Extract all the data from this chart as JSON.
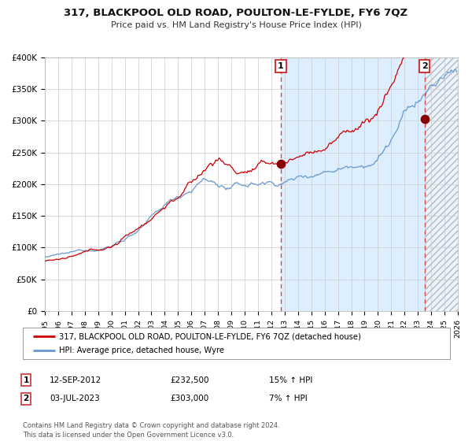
{
  "title": "317, BLACKPOOL OLD ROAD, POULTON-LE-FYLDE, FY6 7QZ",
  "subtitle": "Price paid vs. HM Land Registry's House Price Index (HPI)",
  "legend_line1": "317, BLACKPOOL OLD ROAD, POULTON-LE-FYLDE, FY6 7QZ (detached house)",
  "legend_line2": "HPI: Average price, detached house, Wyre",
  "annotation1_date": "12-SEP-2012",
  "annotation1_price": "£232,500",
  "annotation1_hpi": "15% ↑ HPI",
  "annotation2_date": "03-JUL-2023",
  "annotation2_price": "£303,000",
  "annotation2_hpi": "7% ↑ HPI",
  "footer": "Contains HM Land Registry data © Crown copyright and database right 2024.\nThis data is licensed under the Open Government Licence v3.0.",
  "xmin": 1995,
  "xmax": 2026,
  "ymin": 0,
  "ymax": 400000,
  "yticks": [
    0,
    50000,
    100000,
    150000,
    200000,
    250000,
    300000,
    350000,
    400000
  ],
  "ytick_labels": [
    "£0",
    "£50K",
    "£100K",
    "£150K",
    "£200K",
    "£250K",
    "£300K",
    "£350K",
    "£400K"
  ],
  "sale1_x": 2012.71,
  "sale1_y": 232500,
  "sale2_x": 2023.5,
  "sale2_y": 303000,
  "vline1_x": 2012.71,
  "vline2_x": 2023.5,
  "red_color": "#cc0000",
  "blue_color": "#6699cc",
  "plot_bg": "#ffffff",
  "highlight_bg": "#ddeeff",
  "grid_color": "#cccccc",
  "hatch_color": "#bbccdd"
}
